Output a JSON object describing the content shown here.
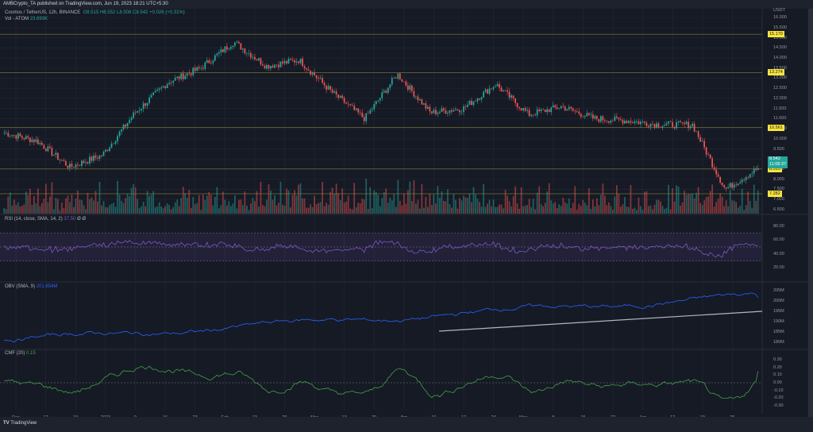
{
  "publisher_line": "AMBCrypto_TA published on TradingView.com, Jun 19, 2023 18:21 UTC+5:30",
  "header": {
    "symbol": "Cosmos / TetherUS, 12h, BINANCE",
    "open": "O8.515",
    "high": "H8.552",
    "low": "L8.508",
    "close": "C8.542",
    "change": "+0.026 (+0.31%)",
    "volume_label": "Vol - ATOM",
    "volume_value": "23.693K"
  },
  "price_axis": {
    "currency": "USDT",
    "ticks": [
      "16.000",
      "15.500",
      "15.000",
      "14.500",
      "14.000",
      "13.500",
      "13.000",
      "12.500",
      "12.000",
      "11.500",
      "11.000",
      "10.500",
      "10.000",
      "9.500",
      "9.000",
      "8.500",
      "8.000",
      "7.500",
      "7.000",
      "6.500"
    ],
    "levels": [
      {
        "label": "15.170",
        "price": 15.17
      },
      {
        "label": "13.274",
        "price": 13.274
      },
      {
        "label": "10.561",
        "price": 10.561
      },
      {
        "label": "8.513",
        "price": 8.513
      },
      {
        "label": "7.282",
        "price": 7.282
      }
    ],
    "current": {
      "label": "8.542",
      "countdown": "11:08:37"
    }
  },
  "rsi": {
    "label": "RSI (14, close, SMA, 14, 2)",
    "value": "37.50",
    "extra": "Ø  Ø",
    "ticks": [
      "80.00",
      "60.00",
      "40.00",
      "20.00"
    ]
  },
  "obv": {
    "label": "OBV (SMA, 9)",
    "value": "201.654M",
    "ticks": [
      "205M",
      "200M",
      "195M",
      "190M",
      "185M",
      "180M"
    ]
  },
  "cmf": {
    "label": "CMF (20)",
    "value": "0.15",
    "ticks": [
      "0.30",
      "0.20",
      "0.10",
      "0.00",
      "-0.10",
      "-0.20",
      "-0.30"
    ]
  },
  "time_axis": [
    "Dec",
    "12",
    "19",
    "2023",
    "9",
    "16",
    "23",
    "Feb",
    "13",
    "20",
    "Mar",
    "13",
    "20",
    "Apr",
    "10",
    "17",
    "24",
    "May",
    "8",
    "15",
    "22",
    "Jun",
    "12",
    "19",
    "26"
  ],
  "footer": {
    "brand": "TradingView"
  },
  "colors": {
    "up": "#26a69a",
    "down": "#ef5350",
    "level": "#f7e43b",
    "rsi": "#7e57c2",
    "obv": "#2962ff",
    "cmf": "#43a047",
    "trend": "#b2b5be"
  },
  "chart_data": {
    "type": "candlestick",
    "title": "Cosmos / TetherUS, 12h, BINANCE",
    "xlabel": "",
    "ylabel": "USDT",
    "ylim": [
      6.3,
      16.2
    ],
    "x": [
      "Dec",
      "12",
      "19",
      "2023",
      "9",
      "16",
      "23",
      "Feb",
      "13",
      "20",
      "Mar",
      "13",
      "20",
      "Apr",
      "10",
      "17",
      "24",
      "May",
      "8",
      "15",
      "22",
      "Jun",
      "12",
      "19",
      "26"
    ],
    "price_path_approx": [
      {
        "x": "Dec",
        "close": 10.3
      },
      {
        "x": "12",
        "close": 9.9
      },
      {
        "x": "19",
        "close": 8.6
      },
      {
        "x": "2023",
        "close": 9.2
      },
      {
        "x": "9",
        "close": 11.3
      },
      {
        "x": "16",
        "close": 12.8
      },
      {
        "x": "23",
        "close": 13.5
      },
      {
        "x": "Feb",
        "close": 14.8
      },
      {
        "x": "13",
        "close": 13.6
      },
      {
        "x": "20",
        "close": 13.9
      },
      {
        "x": "Mar",
        "close": 12.3
      },
      {
        "x": "13",
        "close": 11.0
      },
      {
        "x": "20",
        "close": 13.2
      },
      {
        "x": "Apr",
        "close": 11.3
      },
      {
        "x": "10",
        "close": 11.5
      },
      {
        "x": "17",
        "close": 12.7
      },
      {
        "x": "24",
        "close": 11.2
      },
      {
        "x": "May",
        "close": 11.6
      },
      {
        "x": "8",
        "close": 11.0
      },
      {
        "x": "15",
        "close": 10.9
      },
      {
        "x": "22",
        "close": 10.7
      },
      {
        "x": "Jun",
        "close": 10.7
      },
      {
        "x": "12",
        "close": 7.5
      },
      {
        "x": "19",
        "close": 8.54
      }
    ],
    "horizontal_levels": [
      15.17,
      13.274,
      10.561,
      8.513,
      7.282
    ],
    "series": [
      {
        "name": "RSI (14)",
        "last": 37.5,
        "band": [
          30,
          70
        ]
      },
      {
        "name": "OBV (SMA, 9)",
        "last": "201.654M",
        "trendline": "ascending from late Mar to Jun"
      },
      {
        "name": "CMF (20)",
        "last": 0.15
      }
    ]
  }
}
